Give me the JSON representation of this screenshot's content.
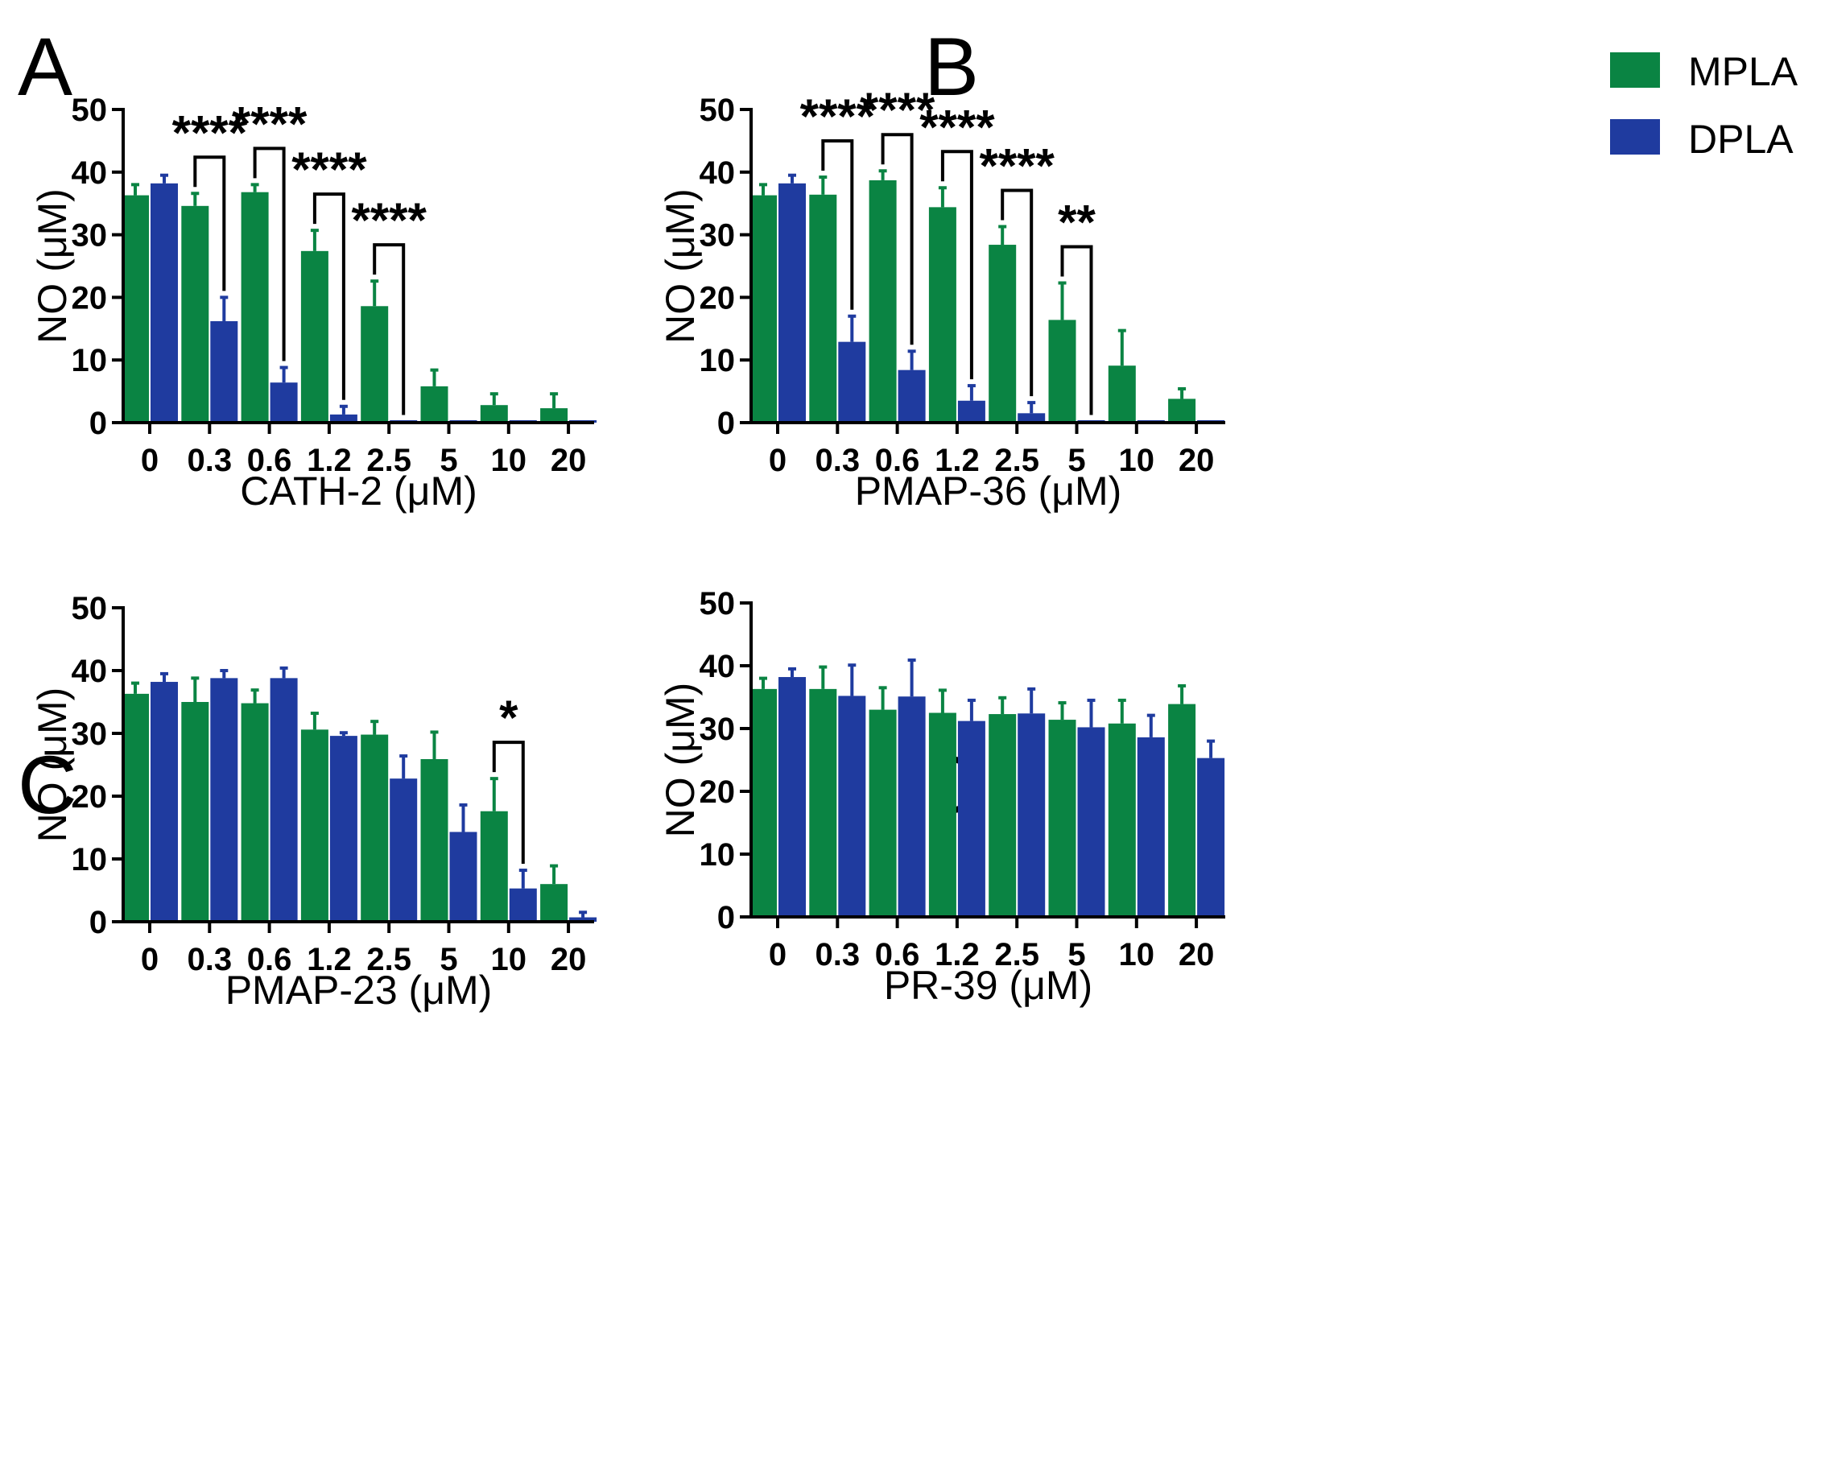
{
  "colors": {
    "MPLA": "#0a8443",
    "DPLA": "#1f3b9f",
    "axis": "#000000"
  },
  "legend": [
    {
      "name": "MPLA",
      "color": "#0a8443"
    },
    {
      "name": "DPLA",
      "color": "#1f3b9f"
    }
  ],
  "chart_data": [
    {
      "panel": "A",
      "type": "bar",
      "categories": [
        "0",
        "0.3",
        "0.6",
        "1.2",
        "2.5",
        "5",
        "10",
        "20"
      ],
      "xlabel": "CATH-2 (μM)",
      "ylabel": "NO (μM)",
      "ylim": [
        0,
        50
      ],
      "yticks": [
        "0",
        "10",
        "20",
        "30",
        "40",
        "50"
      ],
      "series": [
        {
          "name": "MPLA",
          "values": [
            36.3,
            34.6,
            36.8,
            27.4,
            18.6,
            5.8,
            2.8,
            2.3
          ],
          "errors": [
            1.7,
            2.0,
            1.2,
            3.3,
            4.0,
            2.6,
            1.8,
            2.3
          ]
        },
        {
          "name": "DPLA",
          "values": [
            38.2,
            16.2,
            6.4,
            1.3,
            0.2,
            0.1,
            0.2,
            0.2
          ],
          "errors": [
            1.3,
            3.8,
            2.4,
            1.3,
            0,
            0,
            0,
            0
          ]
        }
      ],
      "significance": [
        {
          "category": "0.3",
          "label": "****"
        },
        {
          "category": "0.6",
          "label": "****"
        },
        {
          "category": "1.2",
          "label": "****"
        },
        {
          "category": "2.5",
          "label": "****"
        }
      ]
    },
    {
      "panel": "B",
      "type": "bar",
      "categories": [
        "0",
        "0.3",
        "0.6",
        "1.2",
        "2.5",
        "5",
        "10",
        "20"
      ],
      "xlabel": "PMAP-36 (μM)",
      "ylabel": "NO (μM)",
      "ylim": [
        0,
        50
      ],
      "yticks": [
        "0",
        "10",
        "20",
        "30",
        "40",
        "50"
      ],
      "series": [
        {
          "name": "MPLA",
          "values": [
            36.3,
            36.4,
            38.7,
            34.4,
            28.4,
            16.4,
            9.1,
            3.8
          ],
          "errors": [
            1.7,
            2.8,
            1.5,
            3.1,
            2.9,
            5.9,
            5.6,
            1.6
          ]
        },
        {
          "name": "DPLA",
          "values": [
            38.2,
            12.9,
            8.4,
            3.5,
            1.5,
            0.2,
            0,
            0
          ],
          "errors": [
            1.3,
            4.1,
            3.0,
            2.4,
            1.7,
            0,
            0,
            0
          ]
        }
      ],
      "significance": [
        {
          "category": "0.3",
          "label": "****"
        },
        {
          "category": "0.6",
          "label": "****"
        },
        {
          "category": "1.2",
          "label": "****"
        },
        {
          "category": "2.5",
          "label": "****"
        },
        {
          "category": "5",
          "label": "**"
        }
      ]
    },
    {
      "panel": "C",
      "type": "bar",
      "categories": [
        "0",
        "0.3",
        "0.6",
        "1.2",
        "2.5",
        "5",
        "10",
        "20"
      ],
      "xlabel": "PMAP-23 (μM)",
      "ylabel": "NO (μM)",
      "ylim": [
        0,
        50
      ],
      "yticks": [
        "0",
        "10",
        "20",
        "30",
        "40",
        "50"
      ],
      "series": [
        {
          "name": "MPLA",
          "values": [
            36.3,
            35.0,
            34.8,
            30.6,
            29.8,
            25.9,
            17.6,
            6.0
          ],
          "errors": [
            1.7,
            3.8,
            2.1,
            2.6,
            2.1,
            4.3,
            5.2,
            2.9
          ]
        },
        {
          "name": "DPLA",
          "values": [
            38.2,
            38.8,
            38.8,
            29.6,
            22.8,
            14.3,
            5.3,
            0.7
          ],
          "errors": [
            1.3,
            1.2,
            1.6,
            0.5,
            3.6,
            4.3,
            2.9,
            0.8
          ]
        }
      ],
      "significance": [
        {
          "category": "10",
          "label": "*"
        }
      ]
    },
    {
      "panel": "D",
      "type": "bar",
      "categories": [
        "0",
        "0.3",
        "0.6",
        "1.2",
        "2.5",
        "5",
        "10",
        "20"
      ],
      "xlabel": "PR-39 (μM)",
      "ylabel": "NO (μM)",
      "ylim": [
        0,
        50
      ],
      "yticks": [
        "0",
        "10",
        "20",
        "30",
        "40",
        "50"
      ],
      "series": [
        {
          "name": "MPLA",
          "values": [
            36.3,
            36.3,
            33.0,
            32.5,
            32.3,
            31.4,
            30.8,
            33.9
          ],
          "errors": [
            1.7,
            3.5,
            3.5,
            3.6,
            2.6,
            2.7,
            3.7,
            2.9
          ]
        },
        {
          "name": "DPLA",
          "values": [
            38.2,
            35.2,
            35.1,
            31.2,
            32.4,
            30.2,
            28.6,
            25.3
          ],
          "errors": [
            1.3,
            4.9,
            5.8,
            3.3,
            3.9,
            4.3,
            3.5,
            2.7
          ]
        }
      ],
      "significance": []
    }
  ]
}
